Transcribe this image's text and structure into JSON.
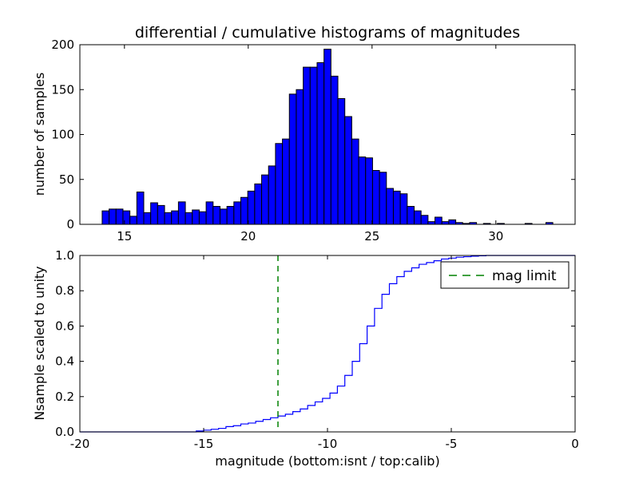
{
  "figure": {
    "title": "differential / cumulative histograms of magnitudes",
    "background": "#ffffff"
  },
  "chart_data": [
    {
      "name": "differential-histogram",
      "type": "bar",
      "ylabel": "number of samples",
      "xlim": [
        13.2,
        33.2
      ],
      "ylim": [
        0,
        200
      ],
      "xticks": {
        "values": [
          15,
          20,
          25,
          30
        ],
        "labels": [
          "15",
          "20",
          "25",
          "30"
        ]
      },
      "yticks": {
        "values": [
          0,
          50,
          100,
          150,
          200
        ],
        "labels": [
          "0",
          "50",
          "100",
          "150",
          "200"
        ]
      },
      "bar_fill": "#0000ff",
      "bar_edge": "#000000",
      "bins": {
        "start": 14.1,
        "width": 0.28
      },
      "counts": [
        15,
        17,
        17,
        15,
        9,
        36,
        13,
        24,
        21,
        13,
        15,
        25,
        13,
        16,
        14,
        25,
        20,
        17,
        20,
        25,
        30,
        37,
        45,
        55,
        65,
        90,
        95,
        145,
        150,
        175,
        175,
        180,
        195,
        165,
        140,
        120,
        95,
        75,
        74,
        60,
        58,
        40,
        37,
        34,
        20,
        15,
        10,
        3,
        8,
        3,
        5,
        2,
        1,
        2,
        0,
        1,
        0,
        1,
        0,
        0,
        0,
        1,
        0,
        0,
        2
      ]
    },
    {
      "name": "cumulative-histogram",
      "type": "line",
      "xlabel": "magnitude (bottom:isnt / top:calib)",
      "ylabel": "Nsample scaled to unity",
      "xlim": [
        -20,
        0
      ],
      "ylim": [
        0.0,
        1.0
      ],
      "xticks": {
        "values": [
          -20,
          -15,
          -10,
          -5,
          0
        ],
        "labels": [
          "-20",
          "-15",
          "-10",
          "-5",
          "0"
        ]
      },
      "yticks": {
        "values": [
          0,
          0.2,
          0.4,
          0.6,
          0.8,
          1
        ],
        "labels": [
          "0.0",
          "0.2",
          "0.4",
          "0.6",
          "0.8",
          "1.0"
        ]
      },
      "line_color": "#0000ff",
      "step_points": [
        [
          -20,
          0
        ],
        [
          -15.3,
          0.005
        ],
        [
          -15,
          0.01
        ],
        [
          -14.7,
          0.015
        ],
        [
          -14.4,
          0.02
        ],
        [
          -14.1,
          0.03
        ],
        [
          -13.8,
          0.035
        ],
        [
          -13.5,
          0.045
        ],
        [
          -13.2,
          0.05
        ],
        [
          -12.9,
          0.06
        ],
        [
          -12.6,
          0.07
        ],
        [
          -12.3,
          0.08
        ],
        [
          -12,
          0.09
        ],
        [
          -11.7,
          0.1
        ],
        [
          -11.4,
          0.115
        ],
        [
          -11.1,
          0.13
        ],
        [
          -10.8,
          0.15
        ],
        [
          -10.5,
          0.17
        ],
        [
          -10.2,
          0.19
        ],
        [
          -9.9,
          0.22
        ],
        [
          -9.6,
          0.26
        ],
        [
          -9.3,
          0.32
        ],
        [
          -9,
          0.4
        ],
        [
          -8.7,
          0.5
        ],
        [
          -8.4,
          0.6
        ],
        [
          -8.1,
          0.7
        ],
        [
          -7.8,
          0.78
        ],
        [
          -7.5,
          0.84
        ],
        [
          -7.2,
          0.88
        ],
        [
          -6.9,
          0.91
        ],
        [
          -6.6,
          0.93
        ],
        [
          -6.3,
          0.95
        ],
        [
          -6,
          0.96
        ],
        [
          -5.7,
          0.97
        ],
        [
          -5.4,
          0.98
        ],
        [
          -5.1,
          0.985
        ],
        [
          -4.8,
          0.99
        ],
        [
          -4.5,
          0.993
        ],
        [
          -4.2,
          0.996
        ],
        [
          -3.9,
          0.998
        ],
        [
          -3.6,
          1.0
        ],
        [
          0,
          1.0
        ]
      ],
      "mag_limit": {
        "x": -12,
        "color": "#008000",
        "style": "dashed",
        "label": "mag limit"
      }
    }
  ]
}
